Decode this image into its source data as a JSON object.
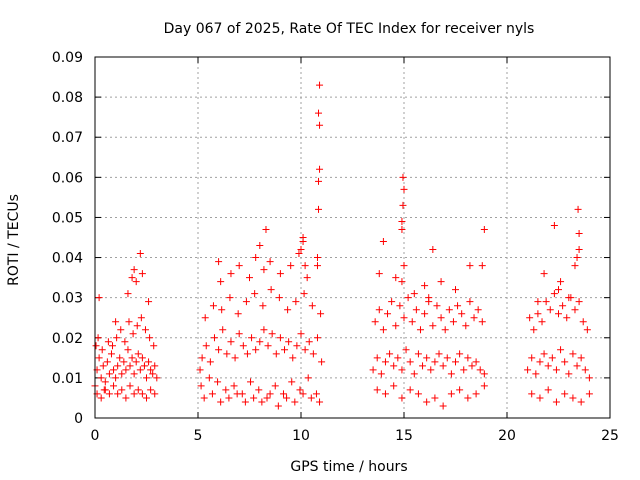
{
  "chart_data": {
    "type": "scatter",
    "title": "Day 067 of 2025, Rate Of TEC Index for receiver nyls",
    "xlabel": "GPS time / hours",
    "ylabel": "ROTI / TECUs",
    "xlim": [
      0,
      25
    ],
    "ylim": [
      0,
      0.09
    ],
    "xticks": [
      0,
      5,
      10,
      15,
      20,
      25
    ],
    "xtick_labels": [
      "0",
      "5",
      "10",
      "15",
      "20",
      "25"
    ],
    "yticks": [
      0,
      0.01,
      0.02,
      0.03,
      0.04,
      0.05,
      0.06,
      0.07,
      0.08,
      0.09
    ],
    "ytick_labels": [
      "0",
      "0.01",
      "0.02",
      "0.03",
      "0.04",
      "0.05",
      "0.06",
      "0.07",
      "0.08",
      "0.09"
    ],
    "grid": true,
    "marker": "+",
    "color": "#ff0000",
    "series": [
      {
        "x": [
          0.0,
          0.1,
          0.2,
          0.3,
          0.4,
          0.5,
          0.6,
          0.7,
          0.8,
          0.9,
          1.0,
          1.1,
          1.2,
          1.3,
          1.4,
          1.5,
          1.6,
          1.7,
          1.8,
          1.9,
          2.0,
          2.1,
          2.2,
          2.3,
          2.4,
          2.5,
          2.6,
          2.7,
          2.8,
          2.9,
          3.0,
          0.05,
          0.15,
          0.35,
          0.45,
          0.65,
          0.85,
          1.05,
          1.25,
          1.45,
          1.65,
          1.85,
          2.05,
          2.25,
          2.45,
          2.65,
          2.85,
          0.1,
          0.3,
          0.5,
          0.7,
          0.9,
          1.1,
          1.3,
          1.5,
          1.7,
          1.9,
          2.1,
          2.3,
          2.5,
          2.7,
          2.9,
          0.2,
          1.0,
          1.6,
          1.8,
          1.9,
          2.0,
          2.2,
          2.3,
          2.6,
          5.1,
          5.2,
          5.4,
          5.6,
          5.8,
          6.0,
          6.2,
          6.4,
          6.6,
          6.8,
          7.0,
          7.2,
          7.4,
          7.6,
          7.8,
          8.0,
          8.2,
          8.4,
          8.6,
          8.8,
          9.0,
          9.2,
          9.4,
          9.6,
          9.8,
          10.0,
          10.2,
          10.4,
          10.6,
          10.8,
          11.0,
          5.15,
          5.35,
          5.55,
          5.75,
          5.95,
          6.15,
          6.35,
          6.55,
          6.75,
          6.95,
          7.15,
          7.35,
          7.55,
          7.75,
          7.95,
          8.15,
          8.35,
          8.55,
          8.75,
          8.95,
          9.15,
          9.35,
          9.55,
          9.75,
          9.95,
          10.15,
          10.35,
          10.55,
          10.75,
          10.95,
          5.3,
          5.7,
          6.1,
          6.5,
          6.9,
          7.3,
          7.7,
          8.1,
          8.5,
          8.9,
          9.3,
          9.7,
          10.1,
          10.5,
          10.9,
          6.0,
          6.1,
          6.6,
          7.0,
          7.5,
          7.8,
          8.0,
          8.2,
          8.3,
          8.5,
          9.0,
          9.5,
          9.9,
          10.1,
          10.3,
          10.0,
          10.1,
          10.2,
          10.8,
          10.8,
          10.85,
          10.85,
          10.9,
          10.9,
          10.85,
          10.9,
          13.5,
          13.7,
          13.9,
          14.1,
          14.3,
          14.5,
          14.7,
          14.9,
          15.1,
          15.3,
          15.5,
          15.7,
          15.9,
          16.1,
          16.3,
          16.5,
          16.7,
          16.9,
          17.1,
          17.3,
          17.5,
          17.7,
          17.9,
          18.1,
          18.3,
          18.5,
          18.7,
          18.9,
          13.6,
          13.8,
          14.0,
          14.2,
          14.4,
          14.6,
          14.8,
          15.0,
          15.2,
          15.4,
          15.6,
          15.8,
          16.0,
          16.2,
          16.4,
          16.6,
          16.8,
          17.0,
          17.2,
          17.4,
          17.6,
          17.8,
          18.0,
          18.2,
          18.4,
          18.6,
          18.8,
          13.7,
          14.1,
          14.5,
          14.9,
          15.3,
          15.7,
          16.1,
          16.5,
          16.9,
          17.3,
          17.7,
          18.1,
          18.5,
          18.9,
          13.8,
          14.0,
          14.6,
          14.9,
          15.0,
          16.4,
          16.8,
          17.5,
          18.2,
          18.8,
          18.9,
          14.9,
          14.9,
          14.95,
          15.0,
          14.95,
          16.2,
          16.0,
          15.5,
          21.0,
          21.2,
          21.4,
          21.6,
          21.8,
          22.0,
          22.2,
          22.4,
          22.6,
          22.8,
          23.0,
          23.2,
          23.4,
          23.6,
          23.8,
          24.0,
          21.1,
          21.3,
          21.5,
          21.7,
          21.9,
          22.1,
          22.3,
          22.5,
          22.7,
          22.9,
          23.1,
          23.3,
          23.5,
          23.7,
          23.9,
          21.2,
          21.6,
          22.0,
          22.4,
          22.8,
          23.2,
          23.6,
          24.0,
          21.5,
          21.8,
          22.5,
          22.6,
          23.0,
          23.3,
          23.5,
          23.5,
          23.45,
          23.4,
          22.3
        ],
        "y": [
          0.008,
          0.012,
          0.015,
          0.01,
          0.013,
          0.009,
          0.014,
          0.011,
          0.016,
          0.012,
          0.01,
          0.013,
          0.015,
          0.011,
          0.014,
          0.012,
          0.017,
          0.013,
          0.015,
          0.011,
          0.014,
          0.016,
          0.012,
          0.015,
          0.013,
          0.01,
          0.014,
          0.012,
          0.011,
          0.013,
          0.01,
          0.018,
          0.02,
          0.017,
          0.007,
          0.019,
          0.018,
          0.02,
          0.022,
          0.019,
          0.024,
          0.021,
          0.023,
          0.025,
          0.022,
          0.02,
          0.018,
          0.006,
          0.005,
          0.007,
          0.006,
          0.008,
          0.006,
          0.007,
          0.005,
          0.008,
          0.006,
          0.007,
          0.006,
          0.005,
          0.007,
          0.006,
          0.03,
          0.024,
          0.031,
          0.035,
          0.037,
          0.034,
          0.041,
          0.036,
          0.029,
          0.012,
          0.015,
          0.018,
          0.014,
          0.02,
          0.017,
          0.022,
          0.016,
          0.019,
          0.015,
          0.021,
          0.018,
          0.016,
          0.02,
          0.017,
          0.019,
          0.022,
          0.018,
          0.021,
          0.016,
          0.02,
          0.017,
          0.019,
          0.015,
          0.018,
          0.021,
          0.017,
          0.019,
          0.016,
          0.02,
          0.014,
          0.008,
          0.025,
          0.01,
          0.028,
          0.009,
          0.027,
          0.007,
          0.03,
          0.008,
          0.026,
          0.006,
          0.029,
          0.009,
          0.031,
          0.007,
          0.028,
          0.005,
          0.032,
          0.008,
          0.03,
          0.006,
          0.027,
          0.009,
          0.029,
          0.007,
          0.031,
          0.01,
          0.028,
          0.006,
          0.026,
          0.005,
          0.006,
          0.004,
          0.005,
          0.006,
          0.004,
          0.005,
          0.004,
          0.006,
          0.003,
          0.005,
          0.004,
          0.006,
          0.005,
          0.004,
          0.039,
          0.034,
          0.036,
          0.038,
          0.035,
          0.04,
          0.043,
          0.037,
          0.047,
          0.039,
          0.036,
          0.038,
          0.041,
          0.044,
          0.035,
          0.042,
          0.045,
          0.038,
          0.038,
          0.04,
          0.052,
          0.059,
          0.062,
          0.073,
          0.076,
          0.083,
          0.012,
          0.015,
          0.011,
          0.014,
          0.016,
          0.013,
          0.015,
          0.012,
          0.017,
          0.014,
          0.011,
          0.016,
          0.013,
          0.015,
          0.012,
          0.014,
          0.016,
          0.013,
          0.015,
          0.011,
          0.014,
          0.016,
          0.012,
          0.015,
          0.013,
          0.014,
          0.012,
          0.011,
          0.024,
          0.027,
          0.022,
          0.026,
          0.029,
          0.023,
          0.028,
          0.025,
          0.03,
          0.024,
          0.027,
          0.022,
          0.026,
          0.029,
          0.023,
          0.028,
          0.025,
          0.022,
          0.027,
          0.024,
          0.028,
          0.026,
          0.023,
          0.029,
          0.025,
          0.027,
          0.024,
          0.007,
          0.006,
          0.008,
          0.005,
          0.007,
          0.006,
          0.004,
          0.005,
          0.003,
          0.006,
          0.007,
          0.005,
          0.006,
          0.008,
          0.036,
          0.044,
          0.035,
          0.034,
          0.038,
          0.042,
          0.034,
          0.032,
          0.038,
          0.038,
          0.047,
          0.047,
          0.049,
          0.053,
          0.057,
          0.06,
          0.03,
          0.033,
          0.031,
          0.012,
          0.015,
          0.011,
          0.014,
          0.016,
          0.013,
          0.015,
          0.012,
          0.017,
          0.014,
          0.011,
          0.016,
          0.013,
          0.015,
          0.012,
          0.01,
          0.025,
          0.022,
          0.026,
          0.024,
          0.029,
          0.027,
          0.031,
          0.026,
          0.028,
          0.025,
          0.03,
          0.027,
          0.029,
          0.024,
          0.022,
          0.006,
          0.005,
          0.007,
          0.004,
          0.006,
          0.005,
          0.004,
          0.006,
          0.029,
          0.036,
          0.032,
          0.034,
          0.03,
          0.038,
          0.042,
          0.046,
          0.052,
          0.04,
          0.048
        ]
      }
    ]
  }
}
